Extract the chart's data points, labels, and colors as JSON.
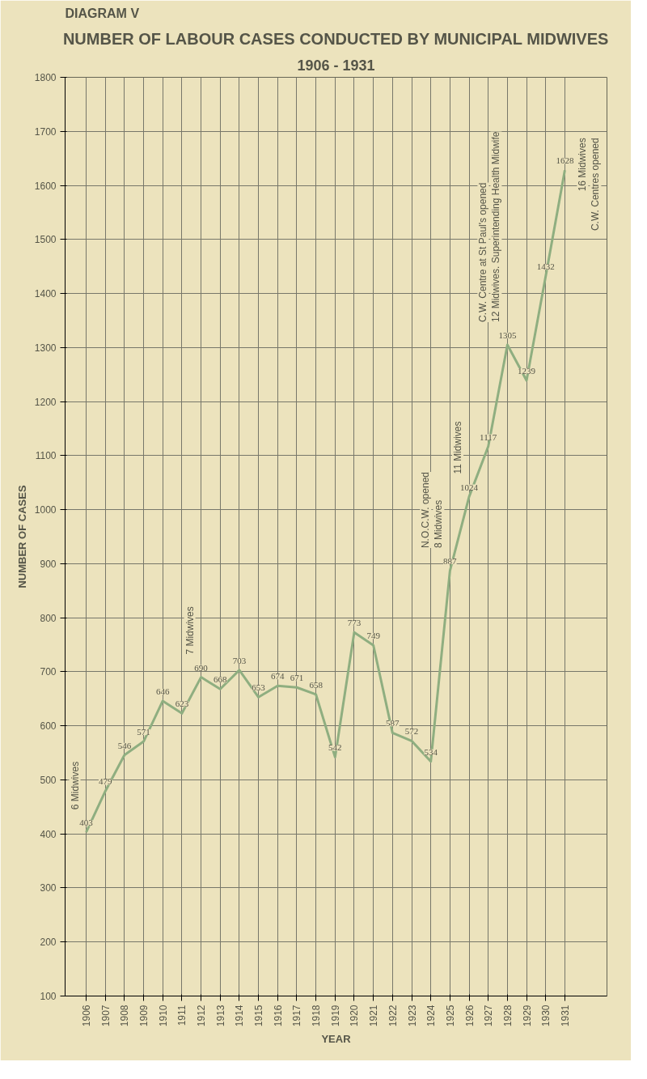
{
  "chart_data": {
    "type": "line",
    "title": "NUMBER OF LABOUR CASES CONDUCTED BY MUNICIPAL MIDWIVES",
    "subtitle": "1906 - 1931",
    "xlabel": "YEAR",
    "ylabel": "NUMBER OF CASES",
    "categories": [
      "1906",
      "1907",
      "1908",
      "1909",
      "1910",
      "1911",
      "1912",
      "1913",
      "1914",
      "1915",
      "1916",
      "1917",
      "1918",
      "1919",
      "1920",
      "1921",
      "1922",
      "1923",
      "1924",
      "1925",
      "1926",
      "1927",
      "1928",
      "1929",
      "1930",
      "1931"
    ],
    "series": [
      {
        "color": "#8fae80",
        "values": [
          403,
          479,
          546,
          571,
          646,
          623,
          690,
          668,
          703,
          653,
          674,
          671,
          658,
          542,
          773,
          749,
          587,
          572,
          534,
          887,
          1024,
          1117,
          1305,
          1239,
          1432,
          1628
        ]
      }
    ],
    "data_labels": true,
    "marker": "none",
    "line_style": "solid",
    "ylim": [
      100,
      1800
    ],
    "yticks": [
      100,
      200,
      300,
      400,
      500,
      600,
      700,
      800,
      900,
      1000,
      1100,
      1200,
      1300,
      1400,
      1500,
      1600,
      1700,
      1800
    ],
    "grid": true,
    "annotations": [
      "DIAGRAM V",
      {
        "text": "6 Midwives",
        "x": "1906",
        "y": 403
      },
      {
        "text": "7 Midwives",
        "x": "1912",
        "y": 690
      },
      {
        "text": "8 Midwives",
        "x": "1925",
        "y": 887
      },
      "N.O.C.W. opened",
      {
        "text": "11 Midwives",
        "x": "1926",
        "y": 1024
      },
      {
        "text": "12 Midwives. Superintending Health Midwife",
        "x": "1928",
        "y": 1305
      },
      "C.W. Centre at St Paul's opened",
      {
        "text": "16 Midwives",
        "x": "1931",
        "y": 1628
      },
      "C.W. Centres opened"
    ]
  }
}
